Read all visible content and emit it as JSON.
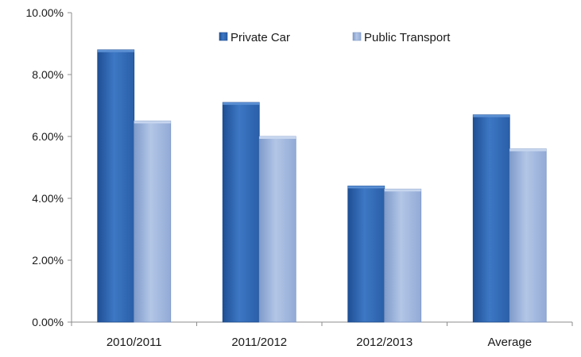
{
  "chart_data": {
    "type": "bar",
    "categories": [
      "2010/2011",
      "2011/2012",
      "2012/2013",
      "Average"
    ],
    "series": [
      {
        "name": "Private Car",
        "values": [
          8.8,
          7.1,
          4.4,
          6.7
        ],
        "color": "#2f67b3"
      },
      {
        "name": "Public Transport",
        "values": [
          6.5,
          6.0,
          4.3,
          5.6
        ],
        "color": "#98b1d9"
      }
    ],
    "yticks": [
      "0.00%",
      "2.00%",
      "4.00%",
      "6.00%",
      "8.00%",
      "10.00%"
    ],
    "ylim": [
      0,
      10
    ],
    "legend_position": "top-center",
    "grid": false
  }
}
